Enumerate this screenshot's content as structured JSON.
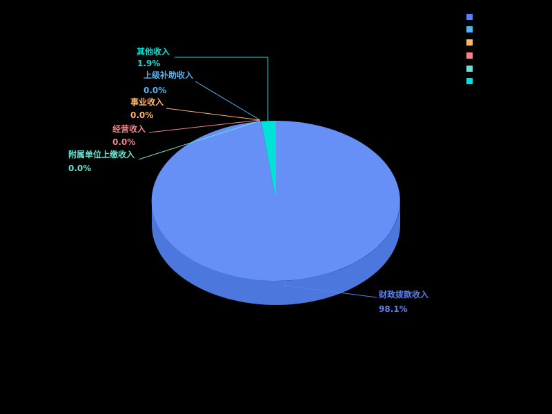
{
  "page": {
    "background_color": "#000000"
  },
  "chart_data": {
    "type": "pie",
    "title": "",
    "style_3d": true,
    "start_angle_deg": 0,
    "direction": "clockwise",
    "legend_position": "top-right",
    "legend_text_visible": false,
    "slices": [
      {
        "label": "财政拨款收入",
        "value": 98.1,
        "percent_label": "98.1%",
        "color": "#5C80EC",
        "top_color": "#6690F5",
        "side_color": "#4C78DE"
      },
      {
        "label": "上级补助收入",
        "value": 0.0,
        "percent_label": "0.0%",
        "color": "#52B5F2"
      },
      {
        "label": "事业收入",
        "value": 0.0,
        "percent_label": "0.0%",
        "color": "#FFB963"
      },
      {
        "label": "经营收入",
        "value": 0.0,
        "percent_label": "0.0%",
        "color": "#F08488"
      },
      {
        "label": "附属单位上缴收入",
        "value": 0.0,
        "percent_label": "0.0%",
        "color": "#6CE0D0"
      },
      {
        "label": "其他收入",
        "value": 1.9,
        "percent_label": "1.9%",
        "color": "#00E1D8"
      }
    ]
  }
}
